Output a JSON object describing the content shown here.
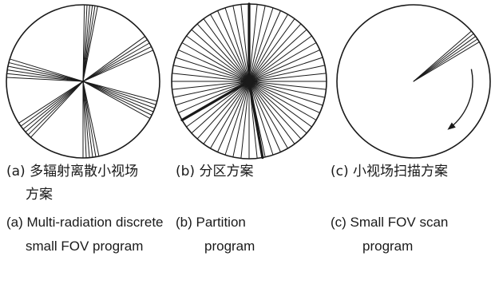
{
  "panels": [
    {
      "id": "a",
      "cn_caption_line1": "(a) 多辐射离散小视场",
      "cn_caption_line2": "方案",
      "en_caption_line1": "(a) Multi-radiation discrete",
      "en_caption_line2": "small FOV program",
      "pattern": "multi-radiation-discrete",
      "fan_groups_deg": [
        {
          "center": -84,
          "count": 6,
          "spread": 10
        },
        {
          "center": -30,
          "count": 5,
          "spread": 12
        },
        {
          "center": 22,
          "count": 6,
          "spread": 14
        },
        {
          "center": 84,
          "count": 6,
          "spread": 12
        },
        {
          "center": 140,
          "count": 6,
          "spread": 14
        },
        {
          "center": 190,
          "count": 6,
          "spread": 14
        }
      ]
    },
    {
      "id": "b",
      "cn_caption_line1": "(b) 分区方案",
      "en_caption_line1": "(b) Partition",
      "en_caption_line2": "program",
      "pattern": "partition",
      "spoke_count": 60,
      "bold_spoke_angles_deg": [
        -90,
        80,
        150
      ]
    },
    {
      "id": "c",
      "cn_caption_line1": "(c) 小视场扫描方案",
      "en_caption_line1": "(c) Small FOV scan",
      "en_caption_line2": "program",
      "pattern": "small-fov-scan",
      "fan_center_deg": -36,
      "fan_count": 5,
      "fan_spread_deg": 10,
      "scan_direction": "clockwise"
    }
  ],
  "colors": {
    "line": "#1a1a1a",
    "background": "#ffffff"
  }
}
